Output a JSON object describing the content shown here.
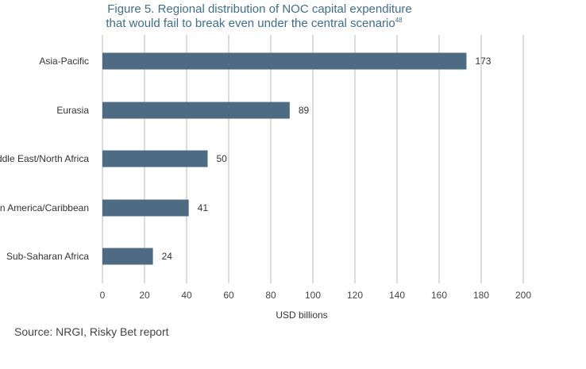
{
  "chart_data": {
    "type": "bar",
    "orientation": "horizontal",
    "title_lines": [
      "Figure 5. Regional distribution of NOC capital expenditure",
      "that would fail to break even under the central scenario"
    ],
    "title_superscript": "48",
    "categories": [
      "Asia-Pacific",
      "Eurasia",
      "Middle East/North Africa",
      "Latin America/Caribbean",
      "Sub-Saharan Africa"
    ],
    "values": [
      173,
      89,
      50,
      41,
      24
    ],
    "xlabel": "USD billions",
    "xlim": [
      0,
      200
    ],
    "xticks": [
      0,
      20,
      40,
      60,
      80,
      100,
      120,
      140,
      160,
      180,
      200
    ],
    "grid": true,
    "bar_color": "#4e6b84",
    "source": "Source: NRGI, Risky Bet report"
  }
}
